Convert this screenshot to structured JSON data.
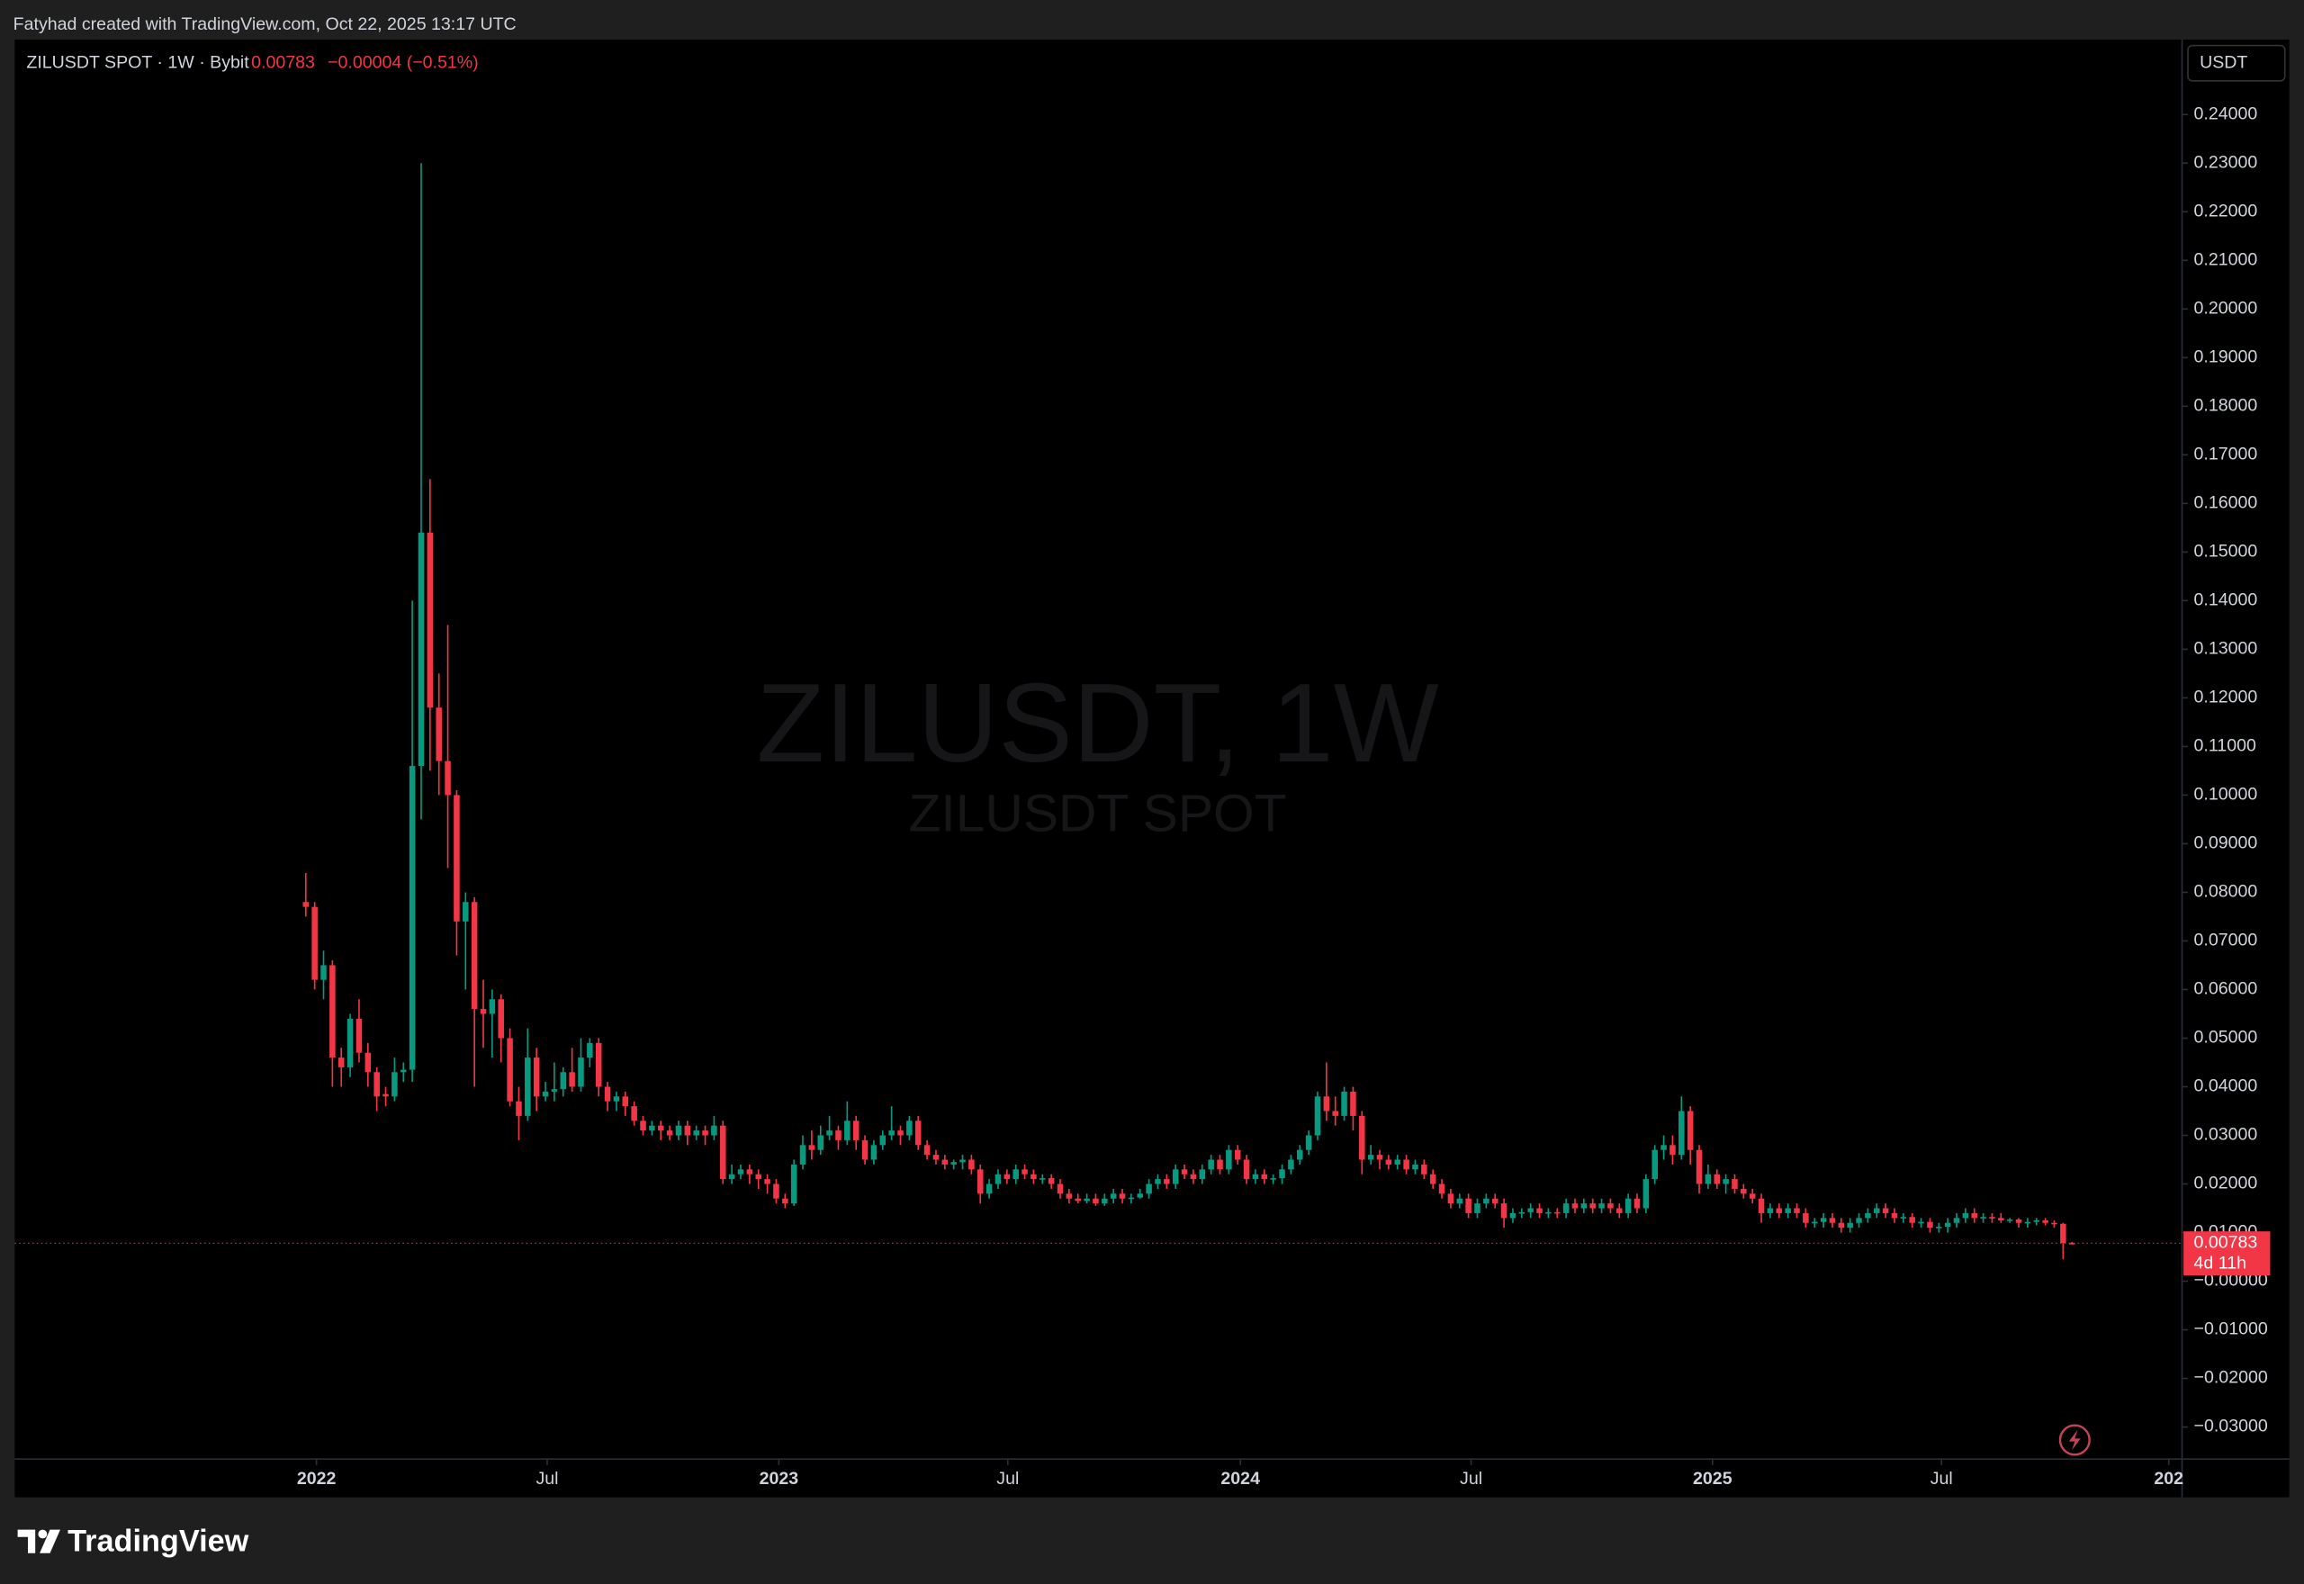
{
  "header": {
    "credit": "Fatyhad created with TradingView.com, Oct 22, 2025 13:17 UTC"
  },
  "footer": {
    "logo": "TradingView"
  },
  "chart_data": {
    "type": "candlestick",
    "symbol": "ZILUSDT SPOT · 1W · Bybit",
    "last_price": 0.00783,
    "change": "−0.00004 (−0.51%)",
    "countdown": "4d 11h",
    "currency": "USDT",
    "watermark": "ZILUSDT, 1W",
    "watermark_subtitle": "ZILUSDT SPOT",
    "up_color": "#089981",
    "down_color": "#f23645",
    "xlim": [
      -32.8,
      211.4
    ],
    "xticks": [
      {
        "value": 1.2,
        "label": "2022"
      },
      {
        "value": 27.2,
        "label": "Jul"
      },
      {
        "value": 53.3,
        "label": "2023"
      },
      {
        "value": 79.1,
        "label": "Jul"
      },
      {
        "value": 105.3,
        "label": "2024"
      },
      {
        "value": 131.3,
        "label": "Jul"
      },
      {
        "value": 158.5,
        "label": "2025"
      },
      {
        "value": 184.3,
        "label": "Jul"
      },
      {
        "value": 209.9,
        "label": "202"
      }
    ],
    "ylim": [
      -0.0366,
      0.2554
    ],
    "yticks": [
      {
        "value": -0.03,
        "label": "−0.03000"
      },
      {
        "value": -0.02,
        "label": "−0.02000"
      },
      {
        "value": -0.01,
        "label": "−0.01000"
      },
      {
        "value": 0,
        "label": "−0.00000"
      },
      {
        "value": 0.01,
        "label": "0.01000"
      },
      {
        "value": 0.02,
        "label": "0.02000"
      },
      {
        "value": 0.03,
        "label": "0.03000"
      },
      {
        "value": 0.04,
        "label": "0.04000"
      },
      {
        "value": 0.05,
        "label": "0.05000"
      },
      {
        "value": 0.06,
        "label": "0.06000"
      },
      {
        "value": 0.07,
        "label": "0.07000"
      },
      {
        "value": 0.08,
        "label": "0.08000"
      },
      {
        "value": 0.09,
        "label": "0.09000"
      },
      {
        "value": 0.1,
        "label": "0.10000"
      },
      {
        "value": 0.11,
        "label": "0.11000"
      },
      {
        "value": 0.12,
        "label": "0.12000"
      },
      {
        "value": 0.13,
        "label": "0.13000"
      },
      {
        "value": 0.14,
        "label": "0.14000"
      },
      {
        "value": 0.15,
        "label": "0.15000"
      },
      {
        "value": 0.16,
        "label": "0.16000"
      },
      {
        "value": 0.17,
        "label": "0.17000"
      },
      {
        "value": 0.18,
        "label": "0.18000"
      },
      {
        "value": 0.19,
        "label": "0.19000"
      },
      {
        "value": 0.2,
        "label": "0.20000"
      },
      {
        "value": 0.21,
        "label": "0.21000"
      },
      {
        "value": 0.22,
        "label": "0.22000"
      },
      {
        "value": 0.23,
        "label": "0.23000"
      },
      {
        "value": 0.24,
        "label": "0.24000"
      }
    ],
    "open": [
      0.078,
      0.077,
      0.062,
      0.065,
      0.046,
      0.044,
      0.054,
      0.047,
      0.043,
      0.0385,
      0.038,
      0.043,
      0.0435,
      0.106,
      0.154,
      0.118,
      0.107,
      0.1,
      0.074,
      0.078,
      0.056,
      0.055,
      0.058,
      0.05,
      0.037,
      0.034,
      0.046,
      0.038,
      0.039,
      0.0395,
      0.043,
      0.04,
      0.046,
      0.049,
      0.04,
      0.037,
      0.038,
      0.036,
      0.033,
      0.031,
      0.032,
      0.031,
      0.03,
      0.032,
      0.03,
      0.031,
      0.03,
      0.032,
      0.021,
      0.022,
      0.023,
      0.022,
      0.021,
      0.02,
      0.017,
      0.016,
      0.024,
      0.028,
      0.027,
      0.03,
      0.031,
      0.029,
      0.033,
      0.029,
      0.025,
      0.028,
      0.03,
      0.031,
      0.03,
      0.033,
      0.028,
      0.026,
      0.025,
      0.024,
      0.0245,
      0.025,
      0.023,
      0.018,
      0.02,
      0.022,
      0.021,
      0.023,
      0.022,
      0.021,
      0.0212,
      0.02,
      0.018,
      0.017,
      0.0165,
      0.017,
      0.016,
      0.017,
      0.018,
      0.017,
      0.0172,
      0.018,
      0.02,
      0.021,
      0.02,
      0.023,
      0.022,
      0.021,
      0.023,
      0.025,
      0.023,
      0.027,
      0.025,
      0.021,
      0.022,
      0.021,
      0.0212,
      0.023,
      0.025,
      0.027,
      0.03,
      0.038,
      0.035,
      0.034,
      0.039,
      0.034,
      0.025,
      0.026,
      0.025,
      0.024,
      0.025,
      0.023,
      0.024,
      0.022,
      0.02,
      0.018,
      0.016,
      0.017,
      0.014,
      0.016,
      0.017,
      0.016,
      0.013,
      0.014,
      0.0142,
      0.015,
      0.014,
      0.0142,
      0.014,
      0.016,
      0.015,
      0.016,
      0.015,
      0.016,
      0.015,
      0.014,
      0.017,
      0.015,
      0.021,
      0.027,
      0.028,
      0.026,
      0.035,
      0.027,
      0.02,
      0.022,
      0.02,
      0.021,
      0.019,
      0.018,
      0.017,
      0.014,
      0.015,
      0.014,
      0.015,
      0.014,
      0.012,
      0.0122,
      0.013,
      0.012,
      0.011,
      0.012,
      0.013,
      0.014,
      0.015,
      0.014,
      0.013,
      0.0132,
      0.012,
      0.0122,
      0.011,
      0.0112,
      0.012,
      0.013,
      0.014,
      0.013,
      0.0132,
      0.013,
      0.0125,
      0.0127,
      0.012,
      0.0122,
      0.0125,
      0.012,
      0.0118,
      0.00787
    ],
    "high": [
      0.084,
      0.078,
      0.068,
      0.066,
      0.048,
      0.055,
      0.058,
      0.049,
      0.044,
      0.04,
      0.046,
      0.045,
      0.14,
      0.23,
      0.165,
      0.125,
      0.135,
      0.101,
      0.08,
      0.079,
      0.062,
      0.06,
      0.059,
      0.052,
      0.04,
      0.052,
      0.048,
      0.041,
      0.045,
      0.044,
      0.048,
      0.05,
      0.05,
      0.05,
      0.041,
      0.039,
      0.039,
      0.037,
      0.034,
      0.033,
      0.033,
      0.032,
      0.033,
      0.033,
      0.032,
      0.032,
      0.034,
      0.033,
      0.024,
      0.024,
      0.024,
      0.023,
      0.022,
      0.021,
      0.018,
      0.025,
      0.03,
      0.031,
      0.032,
      0.034,
      0.032,
      0.037,
      0.034,
      0.03,
      0.029,
      0.031,
      0.036,
      0.032,
      0.034,
      0.034,
      0.029,
      0.027,
      0.026,
      0.025,
      0.026,
      0.026,
      0.024,
      0.021,
      0.023,
      0.023,
      0.024,
      0.024,
      0.023,
      0.022,
      0.022,
      0.021,
      0.019,
      0.018,
      0.018,
      0.018,
      0.018,
      0.019,
      0.019,
      0.018,
      0.019,
      0.021,
      0.022,
      0.022,
      0.024,
      0.024,
      0.023,
      0.024,
      0.026,
      0.026,
      0.028,
      0.028,
      0.026,
      0.023,
      0.023,
      0.022,
      0.024,
      0.026,
      0.028,
      0.031,
      0.039,
      0.045,
      0.038,
      0.04,
      0.04,
      0.035,
      0.028,
      0.027,
      0.026,
      0.026,
      0.026,
      0.025,
      0.025,
      0.023,
      0.021,
      0.019,
      0.018,
      0.018,
      0.017,
      0.018,
      0.018,
      0.017,
      0.015,
      0.015,
      0.016,
      0.016,
      0.015,
      0.015,
      0.017,
      0.017,
      0.017,
      0.017,
      0.017,
      0.017,
      0.016,
      0.018,
      0.018,
      0.022,
      0.028,
      0.03,
      0.03,
      0.038,
      0.036,
      0.028,
      0.024,
      0.023,
      0.022,
      0.022,
      0.02,
      0.019,
      0.018,
      0.016,
      0.016,
      0.016,
      0.016,
      0.015,
      0.013,
      0.014,
      0.014,
      0.013,
      0.013,
      0.014,
      0.015,
      0.016,
      0.016,
      0.015,
      0.014,
      0.014,
      0.013,
      0.013,
      0.012,
      0.013,
      0.014,
      0.015,
      0.015,
      0.014,
      0.014,
      0.014,
      0.013,
      0.013,
      0.013,
      0.013,
      0.013,
      0.0125,
      0.012,
      0.0081
    ],
    "low": [
      0.075,
      0.06,
      0.058,
      0.04,
      0.04,
      0.042,
      0.045,
      0.04,
      0.035,
      0.036,
      0.037,
      0.041,
      0.041,
      0.095,
      0.105,
      0.1,
      0.085,
      0.067,
      0.06,
      0.04,
      0.048,
      0.046,
      0.045,
      0.036,
      0.029,
      0.033,
      0.035,
      0.037,
      0.037,
      0.038,
      0.039,
      0.039,
      0.044,
      0.038,
      0.035,
      0.035,
      0.034,
      0.032,
      0.03,
      0.03,
      0.029,
      0.029,
      0.029,
      0.028,
      0.029,
      0.028,
      0.029,
      0.02,
      0.02,
      0.021,
      0.02,
      0.019,
      0.018,
      0.016,
      0.015,
      0.0155,
      0.023,
      0.025,
      0.026,
      0.029,
      0.027,
      0.028,
      0.027,
      0.024,
      0.024,
      0.027,
      0.029,
      0.028,
      0.029,
      0.027,
      0.025,
      0.024,
      0.023,
      0.023,
      0.023,
      0.022,
      0.016,
      0.017,
      0.019,
      0.02,
      0.02,
      0.021,
      0.02,
      0.02,
      0.019,
      0.017,
      0.016,
      0.016,
      0.016,
      0.0155,
      0.0155,
      0.016,
      0.016,
      0.016,
      0.017,
      0.017,
      0.019,
      0.019,
      0.019,
      0.021,
      0.02,
      0.02,
      0.022,
      0.022,
      0.022,
      0.024,
      0.02,
      0.02,
      0.02,
      0.02,
      0.02,
      0.022,
      0.024,
      0.026,
      0.029,
      0.033,
      0.032,
      0.033,
      0.031,
      0.022,
      0.024,
      0.023,
      0.023,
      0.023,
      0.022,
      0.022,
      0.021,
      0.019,
      0.017,
      0.015,
      0.015,
      0.013,
      0.013,
      0.015,
      0.015,
      0.011,
      0.012,
      0.013,
      0.013,
      0.013,
      0.013,
      0.013,
      0.013,
      0.014,
      0.014,
      0.014,
      0.014,
      0.014,
      0.013,
      0.013,
      0.014,
      0.014,
      0.02,
      0.025,
      0.024,
      0.025,
      0.024,
      0.018,
      0.019,
      0.019,
      0.018,
      0.018,
      0.017,
      0.016,
      0.012,
      0.013,
      0.013,
      0.013,
      0.013,
      0.011,
      0.011,
      0.011,
      0.011,
      0.01,
      0.01,
      0.011,
      0.012,
      0.013,
      0.013,
      0.012,
      0.012,
      0.011,
      0.011,
      0.01,
      0.01,
      0.01,
      0.011,
      0.012,
      0.012,
      0.012,
      0.012,
      0.012,
      0.012,
      0.011,
      0.011,
      0.0115,
      0.0115,
      0.011,
      0.0045,
      0.0076
    ],
    "close": [
      0.077,
      0.062,
      0.065,
      0.046,
      0.044,
      0.054,
      0.047,
      0.043,
      0.038,
      0.038,
      0.043,
      0.0435,
      0.106,
      0.154,
      0.118,
      0.107,
      0.1,
      0.074,
      0.078,
      0.056,
      0.055,
      0.058,
      0.05,
      0.037,
      0.034,
      0.046,
      0.038,
      0.039,
      0.0395,
      0.043,
      0.04,
      0.046,
      0.049,
      0.04,
      0.037,
      0.038,
      0.036,
      0.033,
      0.031,
      0.032,
      0.031,
      0.03,
      0.032,
      0.03,
      0.031,
      0.03,
      0.032,
      0.021,
      0.022,
      0.023,
      0.022,
      0.021,
      0.02,
      0.017,
      0.016,
      0.024,
      0.028,
      0.027,
      0.03,
      0.031,
      0.029,
      0.033,
      0.029,
      0.025,
      0.028,
      0.03,
      0.031,
      0.03,
      0.033,
      0.028,
      0.026,
      0.025,
      0.024,
      0.0245,
      0.025,
      0.023,
      0.018,
      0.02,
      0.022,
      0.021,
      0.023,
      0.022,
      0.021,
      0.0212,
      0.02,
      0.018,
      0.017,
      0.0165,
      0.017,
      0.016,
      0.017,
      0.018,
      0.017,
      0.0172,
      0.018,
      0.02,
      0.021,
      0.02,
      0.023,
      0.022,
      0.021,
      0.023,
      0.025,
      0.023,
      0.027,
      0.025,
      0.021,
      0.022,
      0.021,
      0.0212,
      0.023,
      0.025,
      0.027,
      0.03,
      0.038,
      0.035,
      0.034,
      0.039,
      0.034,
      0.025,
      0.026,
      0.025,
      0.024,
      0.025,
      0.023,
      0.024,
      0.022,
      0.02,
      0.018,
      0.016,
      0.017,
      0.014,
      0.016,
      0.017,
      0.016,
      0.013,
      0.014,
      0.0142,
      0.015,
      0.014,
      0.0142,
      0.014,
      0.016,
      0.015,
      0.016,
      0.015,
      0.016,
      0.015,
      0.014,
      0.017,
      0.015,
      0.021,
      0.027,
      0.028,
      0.026,
      0.035,
      0.027,
      0.02,
      0.022,
      0.02,
      0.021,
      0.019,
      0.018,
      0.017,
      0.014,
      0.015,
      0.014,
      0.015,
      0.014,
      0.012,
      0.0122,
      0.013,
      0.012,
      0.011,
      0.012,
      0.013,
      0.014,
      0.015,
      0.014,
      0.013,
      0.0132,
      0.012,
      0.0122,
      0.011,
      0.0112,
      0.012,
      0.013,
      0.014,
      0.013,
      0.0132,
      0.013,
      0.0125,
      0.0127,
      0.012,
      0.0122,
      0.0125,
      0.012,
      0.0118,
      0.00787,
      0.00783
    ]
  }
}
